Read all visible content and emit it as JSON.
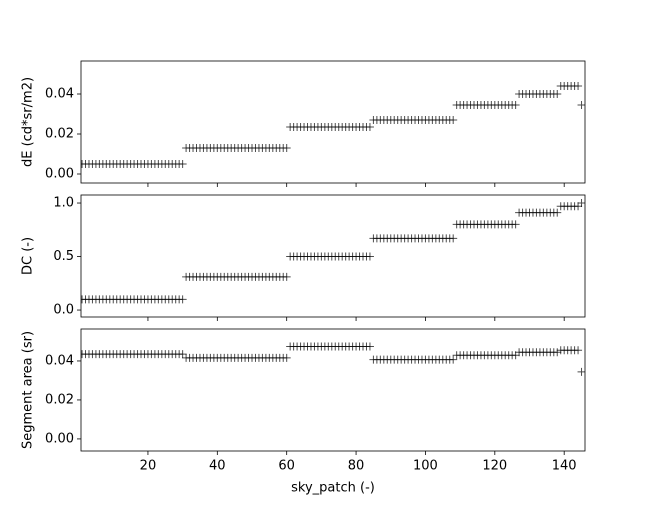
{
  "chart_data": [
    {
      "type": "scatter",
      "ylabel": "dE (cd*sr/m2)",
      "color": "#000000",
      "marker": "+",
      "x": [
        1,
        2,
        3,
        4,
        5,
        6,
        7,
        8,
        9,
        10,
        11,
        12,
        13,
        14,
        15,
        16,
        17,
        18,
        19,
        20,
        21,
        22,
        23,
        24,
        25,
        26,
        27,
        28,
        29,
        30,
        31,
        32,
        33,
        34,
        35,
        36,
        37,
        38,
        39,
        40,
        41,
        42,
        43,
        44,
        45,
        46,
        47,
        48,
        49,
        50,
        51,
        52,
        53,
        54,
        55,
        56,
        57,
        58,
        59,
        60,
        61,
        62,
        63,
        64,
        65,
        66,
        67,
        68,
        69,
        70,
        71,
        72,
        73,
        74,
        75,
        76,
        77,
        78,
        79,
        80,
        81,
        82,
        83,
        84,
        85,
        86,
        87,
        88,
        89,
        90,
        91,
        92,
        93,
        94,
        95,
        96,
        97,
        98,
        99,
        100,
        101,
        102,
        103,
        104,
        105,
        106,
        107,
        108,
        109,
        110,
        111,
        112,
        113,
        114,
        115,
        116,
        117,
        118,
        119,
        120,
        121,
        122,
        123,
        124,
        125,
        126,
        127,
        128,
        129,
        130,
        131,
        132,
        133,
        134,
        135,
        136,
        137,
        138,
        139,
        140,
        141,
        142,
        143,
        144,
        145
      ],
      "values": [
        0.005,
        0.005,
        0.005,
        0.005,
        0.005,
        0.005,
        0.005,
        0.005,
        0.005,
        0.005,
        0.005,
        0.005,
        0.005,
        0.005,
        0.005,
        0.005,
        0.005,
        0.005,
        0.005,
        0.005,
        0.005,
        0.005,
        0.005,
        0.005,
        0.005,
        0.005,
        0.005,
        0.005,
        0.005,
        0.005,
        0.013,
        0.013,
        0.013,
        0.013,
        0.013,
        0.013,
        0.013,
        0.013,
        0.013,
        0.013,
        0.013,
        0.013,
        0.013,
        0.013,
        0.013,
        0.013,
        0.013,
        0.013,
        0.013,
        0.013,
        0.013,
        0.013,
        0.013,
        0.013,
        0.013,
        0.013,
        0.013,
        0.013,
        0.013,
        0.013,
        0.0235,
        0.0235,
        0.0235,
        0.0235,
        0.0235,
        0.0235,
        0.0235,
        0.0235,
        0.0235,
        0.0235,
        0.0235,
        0.0235,
        0.0235,
        0.0235,
        0.0235,
        0.0235,
        0.0235,
        0.0235,
        0.0235,
        0.0235,
        0.0235,
        0.0235,
        0.0235,
        0.0235,
        0.027,
        0.027,
        0.027,
        0.027,
        0.027,
        0.027,
        0.027,
        0.027,
        0.027,
        0.027,
        0.027,
        0.027,
        0.027,
        0.027,
        0.027,
        0.027,
        0.027,
        0.027,
        0.027,
        0.027,
        0.027,
        0.027,
        0.027,
        0.027,
        0.0345,
        0.0345,
        0.0345,
        0.0345,
        0.0345,
        0.0345,
        0.0345,
        0.0345,
        0.0345,
        0.0345,
        0.0345,
        0.0345,
        0.0345,
        0.0345,
        0.0345,
        0.0345,
        0.0345,
        0.0345,
        0.04,
        0.04,
        0.04,
        0.04,
        0.04,
        0.04,
        0.04,
        0.04,
        0.04,
        0.04,
        0.04,
        0.04,
        0.044,
        0.044,
        0.044,
        0.044,
        0.044,
        0.044,
        0.0345
      ],
      "xlim": [
        0.7,
        146
      ],
      "xticks": [
        20,
        40,
        60,
        80,
        100,
        120,
        140
      ],
      "ylim": [
        -0.0045,
        0.0565
      ],
      "yticks": [
        {
          "value": 0,
          "label": "0.00"
        },
        {
          "value": 0.02,
          "label": "0.02"
        },
        {
          "value": 0.04,
          "label": "0.04"
        }
      ]
    },
    {
      "type": "scatter",
      "ylabel": "DC (-)",
      "color": "#000000",
      "marker": "+",
      "x": [
        1,
        2,
        3,
        4,
        5,
        6,
        7,
        8,
        9,
        10,
        11,
        12,
        13,
        14,
        15,
        16,
        17,
        18,
        19,
        20,
        21,
        22,
        23,
        24,
        25,
        26,
        27,
        28,
        29,
        30,
        31,
        32,
        33,
        34,
        35,
        36,
        37,
        38,
        39,
        40,
        41,
        42,
        43,
        44,
        45,
        46,
        47,
        48,
        49,
        50,
        51,
        52,
        53,
        54,
        55,
        56,
        57,
        58,
        59,
        60,
        61,
        62,
        63,
        64,
        65,
        66,
        67,
        68,
        69,
        70,
        71,
        72,
        73,
        74,
        75,
        76,
        77,
        78,
        79,
        80,
        81,
        82,
        83,
        84,
        85,
        86,
        87,
        88,
        89,
        90,
        91,
        92,
        93,
        94,
        95,
        96,
        97,
        98,
        99,
        100,
        101,
        102,
        103,
        104,
        105,
        106,
        107,
        108,
        109,
        110,
        111,
        112,
        113,
        114,
        115,
        116,
        117,
        118,
        119,
        120,
        121,
        122,
        123,
        124,
        125,
        126,
        127,
        128,
        129,
        130,
        131,
        132,
        133,
        134,
        135,
        136,
        137,
        138,
        139,
        140,
        141,
        142,
        143,
        144,
        145
      ],
      "values": [
        0.1,
        0.1,
        0.1,
        0.1,
        0.1,
        0.1,
        0.1,
        0.1,
        0.1,
        0.1,
        0.1,
        0.1,
        0.1,
        0.1,
        0.1,
        0.1,
        0.1,
        0.1,
        0.1,
        0.1,
        0.1,
        0.1,
        0.1,
        0.1,
        0.1,
        0.1,
        0.1,
        0.1,
        0.1,
        0.1,
        0.31,
        0.31,
        0.31,
        0.31,
        0.31,
        0.31,
        0.31,
        0.31,
        0.31,
        0.31,
        0.31,
        0.31,
        0.31,
        0.31,
        0.31,
        0.31,
        0.31,
        0.31,
        0.31,
        0.31,
        0.31,
        0.31,
        0.31,
        0.31,
        0.31,
        0.31,
        0.31,
        0.31,
        0.31,
        0.31,
        0.5,
        0.5,
        0.5,
        0.5,
        0.5,
        0.5,
        0.5,
        0.5,
        0.5,
        0.5,
        0.5,
        0.5,
        0.5,
        0.5,
        0.5,
        0.5,
        0.5,
        0.5,
        0.5,
        0.5,
        0.5,
        0.5,
        0.5,
        0.5,
        0.67,
        0.67,
        0.67,
        0.67,
        0.67,
        0.67,
        0.67,
        0.67,
        0.67,
        0.67,
        0.67,
        0.67,
        0.67,
        0.67,
        0.67,
        0.67,
        0.67,
        0.67,
        0.67,
        0.67,
        0.67,
        0.67,
        0.67,
        0.67,
        0.8,
        0.8,
        0.8,
        0.8,
        0.8,
        0.8,
        0.8,
        0.8,
        0.8,
        0.8,
        0.8,
        0.8,
        0.8,
        0.8,
        0.8,
        0.8,
        0.8,
        0.8,
        0.91,
        0.91,
        0.91,
        0.91,
        0.91,
        0.91,
        0.91,
        0.91,
        0.91,
        0.91,
        0.91,
        0.91,
        0.97,
        0.97,
        0.97,
        0.97,
        0.97,
        0.97,
        1.0
      ],
      "xlim": [
        0.7,
        146
      ],
      "xticks": [
        20,
        40,
        60,
        80,
        100,
        120,
        140
      ],
      "ylim": [
        -0.065,
        1.075
      ],
      "yticks": [
        {
          "value": 0,
          "label": "0.0"
        },
        {
          "value": 0.5,
          "label": "0.5"
        },
        {
          "value": 1,
          "label": "1.0"
        }
      ]
    },
    {
      "type": "scatter",
      "ylabel": "Segment area (sr)",
      "xlabel": "sky_patch (-)",
      "color": "#000000",
      "marker": "+",
      "x": [
        1,
        2,
        3,
        4,
        5,
        6,
        7,
        8,
        9,
        10,
        11,
        12,
        13,
        14,
        15,
        16,
        17,
        18,
        19,
        20,
        21,
        22,
        23,
        24,
        25,
        26,
        27,
        28,
        29,
        30,
        31,
        32,
        33,
        34,
        35,
        36,
        37,
        38,
        39,
        40,
        41,
        42,
        43,
        44,
        45,
        46,
        47,
        48,
        49,
        50,
        51,
        52,
        53,
        54,
        55,
        56,
        57,
        58,
        59,
        60,
        61,
        62,
        63,
        64,
        65,
        66,
        67,
        68,
        69,
        70,
        71,
        72,
        73,
        74,
        75,
        76,
        77,
        78,
        79,
        80,
        81,
        82,
        83,
        84,
        85,
        86,
        87,
        88,
        89,
        90,
        91,
        92,
        93,
        94,
        95,
        96,
        97,
        98,
        99,
        100,
        101,
        102,
        103,
        104,
        105,
        106,
        107,
        108,
        109,
        110,
        111,
        112,
        113,
        114,
        115,
        116,
        117,
        118,
        119,
        120,
        121,
        122,
        123,
        124,
        125,
        126,
        127,
        128,
        129,
        130,
        131,
        132,
        133,
        134,
        135,
        136,
        137,
        138,
        139,
        140,
        141,
        142,
        143,
        144,
        145
      ],
      "values": [
        0.0435,
        0.0435,
        0.0435,
        0.0435,
        0.0435,
        0.0435,
        0.0435,
        0.0435,
        0.0435,
        0.0435,
        0.0435,
        0.0435,
        0.0435,
        0.0435,
        0.0435,
        0.0435,
        0.0435,
        0.0435,
        0.0435,
        0.0435,
        0.0435,
        0.0435,
        0.0435,
        0.0435,
        0.0435,
        0.0435,
        0.0435,
        0.0435,
        0.0435,
        0.0435,
        0.0416,
        0.0416,
        0.0416,
        0.0416,
        0.0416,
        0.0416,
        0.0416,
        0.0416,
        0.0416,
        0.0416,
        0.0416,
        0.0416,
        0.0416,
        0.0416,
        0.0416,
        0.0416,
        0.0416,
        0.0416,
        0.0416,
        0.0416,
        0.0416,
        0.0416,
        0.0416,
        0.0416,
        0.0416,
        0.0416,
        0.0416,
        0.0416,
        0.0416,
        0.0416,
        0.0474,
        0.0474,
        0.0474,
        0.0474,
        0.0474,
        0.0474,
        0.0474,
        0.0474,
        0.0474,
        0.0474,
        0.0474,
        0.0474,
        0.0474,
        0.0474,
        0.0474,
        0.0474,
        0.0474,
        0.0474,
        0.0474,
        0.0474,
        0.0474,
        0.0474,
        0.0474,
        0.0474,
        0.0407,
        0.0407,
        0.0407,
        0.0407,
        0.0407,
        0.0407,
        0.0407,
        0.0407,
        0.0407,
        0.0407,
        0.0407,
        0.0407,
        0.0407,
        0.0407,
        0.0407,
        0.0407,
        0.0407,
        0.0407,
        0.0407,
        0.0407,
        0.0407,
        0.0407,
        0.0407,
        0.0407,
        0.0429,
        0.0429,
        0.0429,
        0.0429,
        0.0429,
        0.0429,
        0.0429,
        0.0429,
        0.0429,
        0.0429,
        0.0429,
        0.0429,
        0.0429,
        0.0429,
        0.0429,
        0.0429,
        0.0429,
        0.0429,
        0.0445,
        0.0445,
        0.0445,
        0.0445,
        0.0445,
        0.0445,
        0.0445,
        0.0445,
        0.0445,
        0.0445,
        0.0445,
        0.0445,
        0.0455,
        0.0455,
        0.0455,
        0.0455,
        0.0455,
        0.0455,
        0.0344
      ],
      "xlim": [
        0.7,
        146
      ],
      "xticks": [
        20,
        40,
        60,
        80,
        100,
        120,
        140
      ],
      "ylim": [
        -0.0062,
        0.0564
      ],
      "yticks": [
        {
          "value": 0,
          "label": "0.00"
        },
        {
          "value": 0.02,
          "label": "0.02"
        },
        {
          "value": 0.04,
          "label": "0.04"
        }
      ]
    }
  ]
}
